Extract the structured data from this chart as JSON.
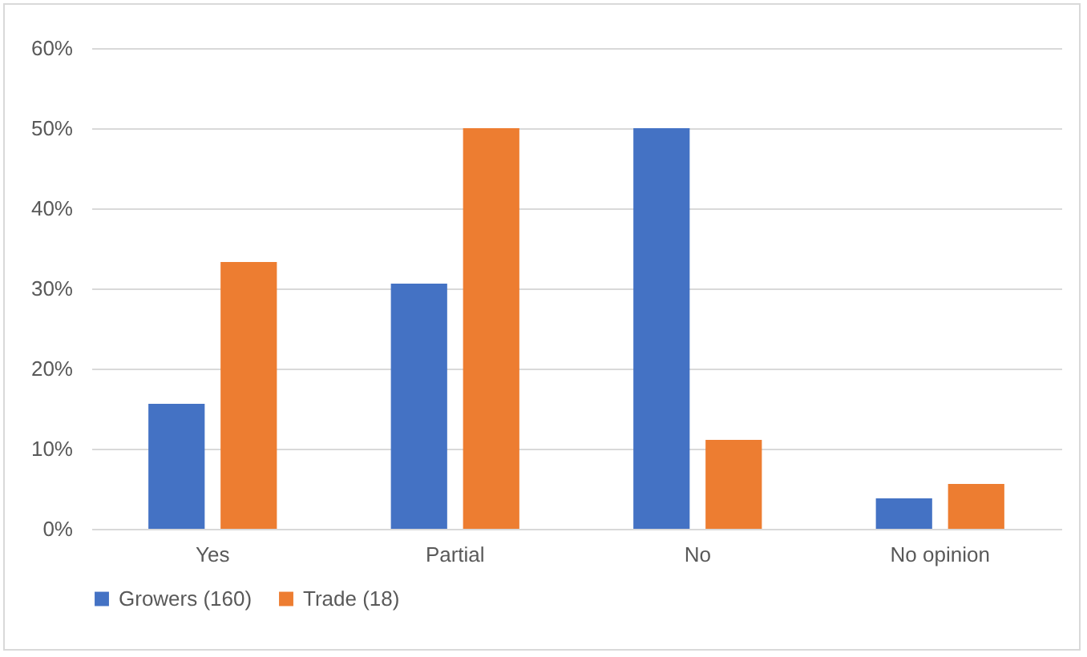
{
  "chart_data": {
    "type": "bar",
    "categories": [
      "Yes",
      "Partial",
      "No",
      "No opinion"
    ],
    "series": [
      {
        "name": "Growers (160)",
        "color": "#4472c4",
        "values": [
          15.6,
          30.6,
          50,
          3.8
        ]
      },
      {
        "name": "Trade (18)",
        "color": "#ed7d31",
        "values": [
          33.3,
          50,
          11.1,
          5.6
        ]
      }
    ],
    "ylim": [
      0,
      60
    ],
    "yticks": [
      {
        "value": 0,
        "label": "0%"
      },
      {
        "value": 10,
        "label": "10%"
      },
      {
        "value": 20,
        "label": "20%"
      },
      {
        "value": 30,
        "label": "30%"
      },
      {
        "value": 40,
        "label": "40%"
      },
      {
        "value": 50,
        "label": "50%"
      },
      {
        "value": 60,
        "label": "60%"
      }
    ],
    "grid": "y",
    "legend": "bottom"
  }
}
